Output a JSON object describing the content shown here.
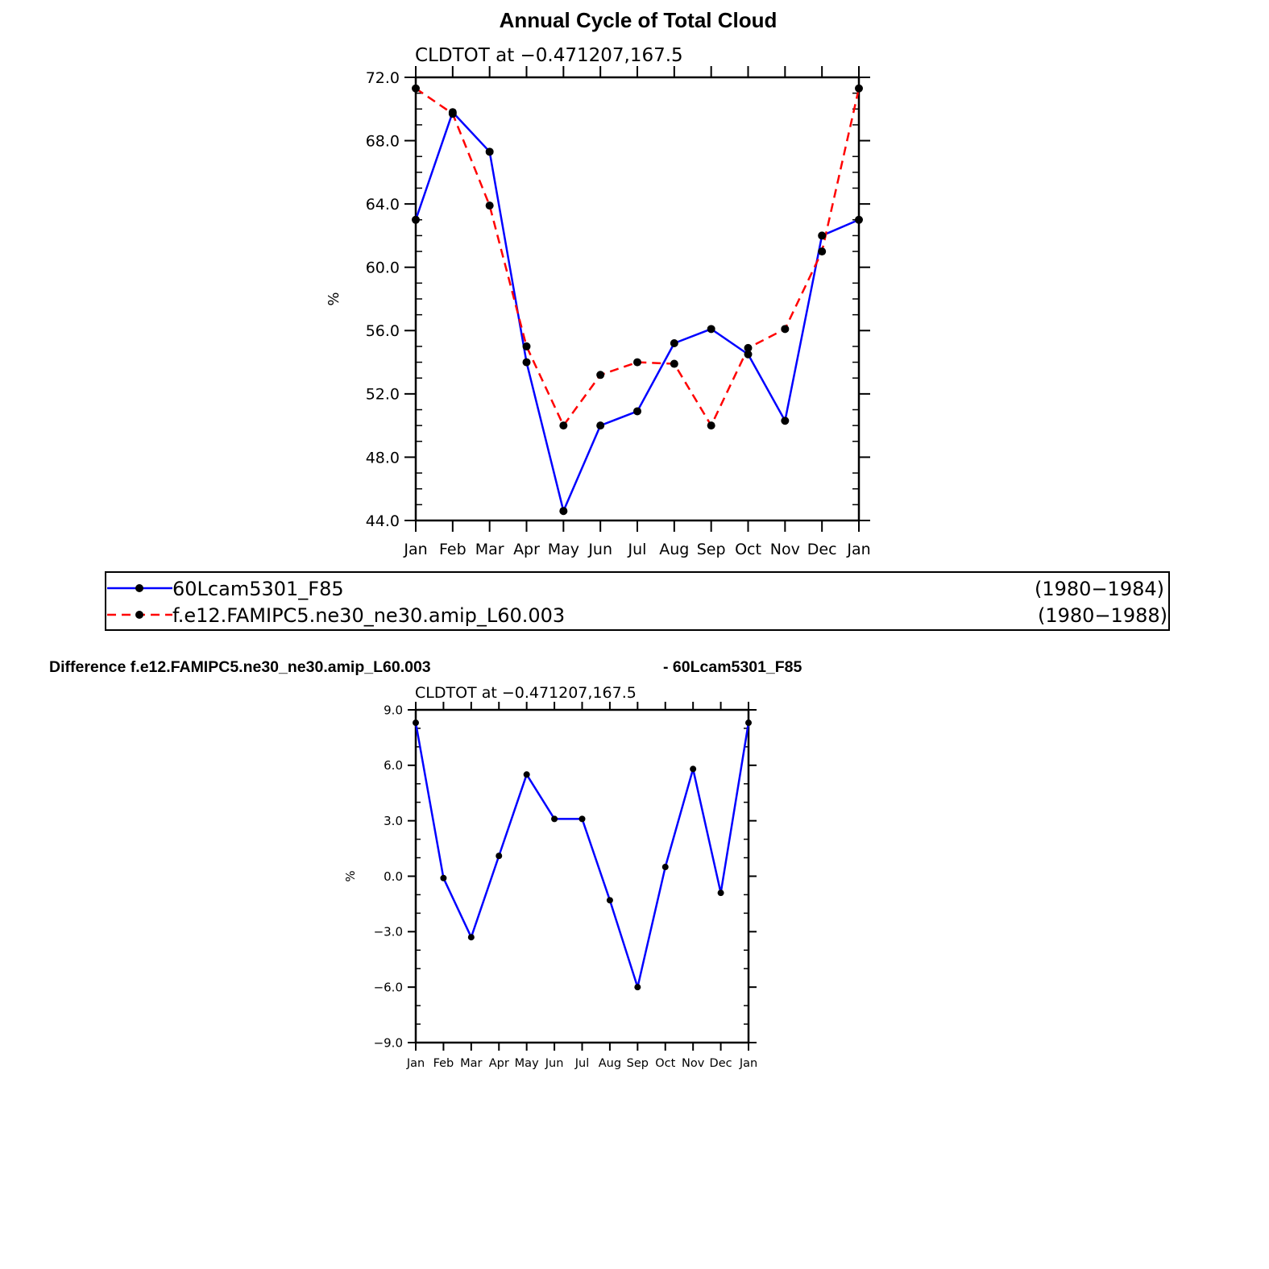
{
  "chart_data": [
    {
      "type": "line",
      "title": "Annual Cycle of Total Cloud",
      "subtitle": "CLDTOT at −0.471207,167.5",
      "xlabel": "",
      "ylabel": "%",
      "categories": [
        "Jan",
        "Feb",
        "Mar",
        "Apr",
        "May",
        "Jun",
        "Jul",
        "Aug",
        "Sep",
        "Oct",
        "Nov",
        "Dec",
        "Jan"
      ],
      "ylim": [
        44.0,
        72.0
      ],
      "yticks": [
        "44.0",
        "48.0",
        "52.0",
        "56.0",
        "60.0",
        "64.0",
        "68.0",
        "72.0"
      ],
      "series": [
        {
          "name": "60Lcam5301_F85",
          "period": "(1980−1984)",
          "color": "#0000ff",
          "dash": "solid",
          "values": [
            63.0,
            69.8,
            67.3,
            54.0,
            44.6,
            50.0,
            50.9,
            55.2,
            56.1,
            54.5,
            50.3,
            62.0,
            63.0
          ]
        },
        {
          "name": "f.e12.FAMIPC5.ne30_ne30.amip_L60.003",
          "period": "(1980−1988)",
          "color": "#ff0000",
          "dash": "dashed",
          "values": [
            71.3,
            69.7,
            63.9,
            55.0,
            50.0,
            53.2,
            54.0,
            53.9,
            50.0,
            54.9,
            56.1,
            61.0,
            71.3
          ]
        }
      ],
      "legend": "bottom"
    },
    {
      "type": "line",
      "title": "Difference f.e12.FAMIPC5.ne30_ne30.amip_L60.003",
      "title_right": "- 60Lcam5301_F85",
      "subtitle": "CLDTOT at −0.471207,167.5",
      "xlabel": "",
      "ylabel": "%",
      "categories": [
        "Jan",
        "Feb",
        "Mar",
        "Apr",
        "May",
        "Jun",
        "Jul",
        "Aug",
        "Sep",
        "Oct",
        "Nov",
        "Dec",
        "Jan"
      ],
      "ylim": [
        -9.0,
        9.0
      ],
      "yticks": [
        "−9.0",
        "−6.0",
        "−3.0",
        "0.0",
        "3.0",
        "6.0",
        "9.0"
      ],
      "series": [
        {
          "name": "difference",
          "color": "#0000ff",
          "dash": "solid",
          "values": [
            8.3,
            -0.1,
            -3.3,
            1.1,
            5.5,
            3.1,
            3.1,
            -1.3,
            -6.0,
            0.5,
            5.8,
            -0.9,
            8.3
          ]
        }
      ]
    }
  ]
}
